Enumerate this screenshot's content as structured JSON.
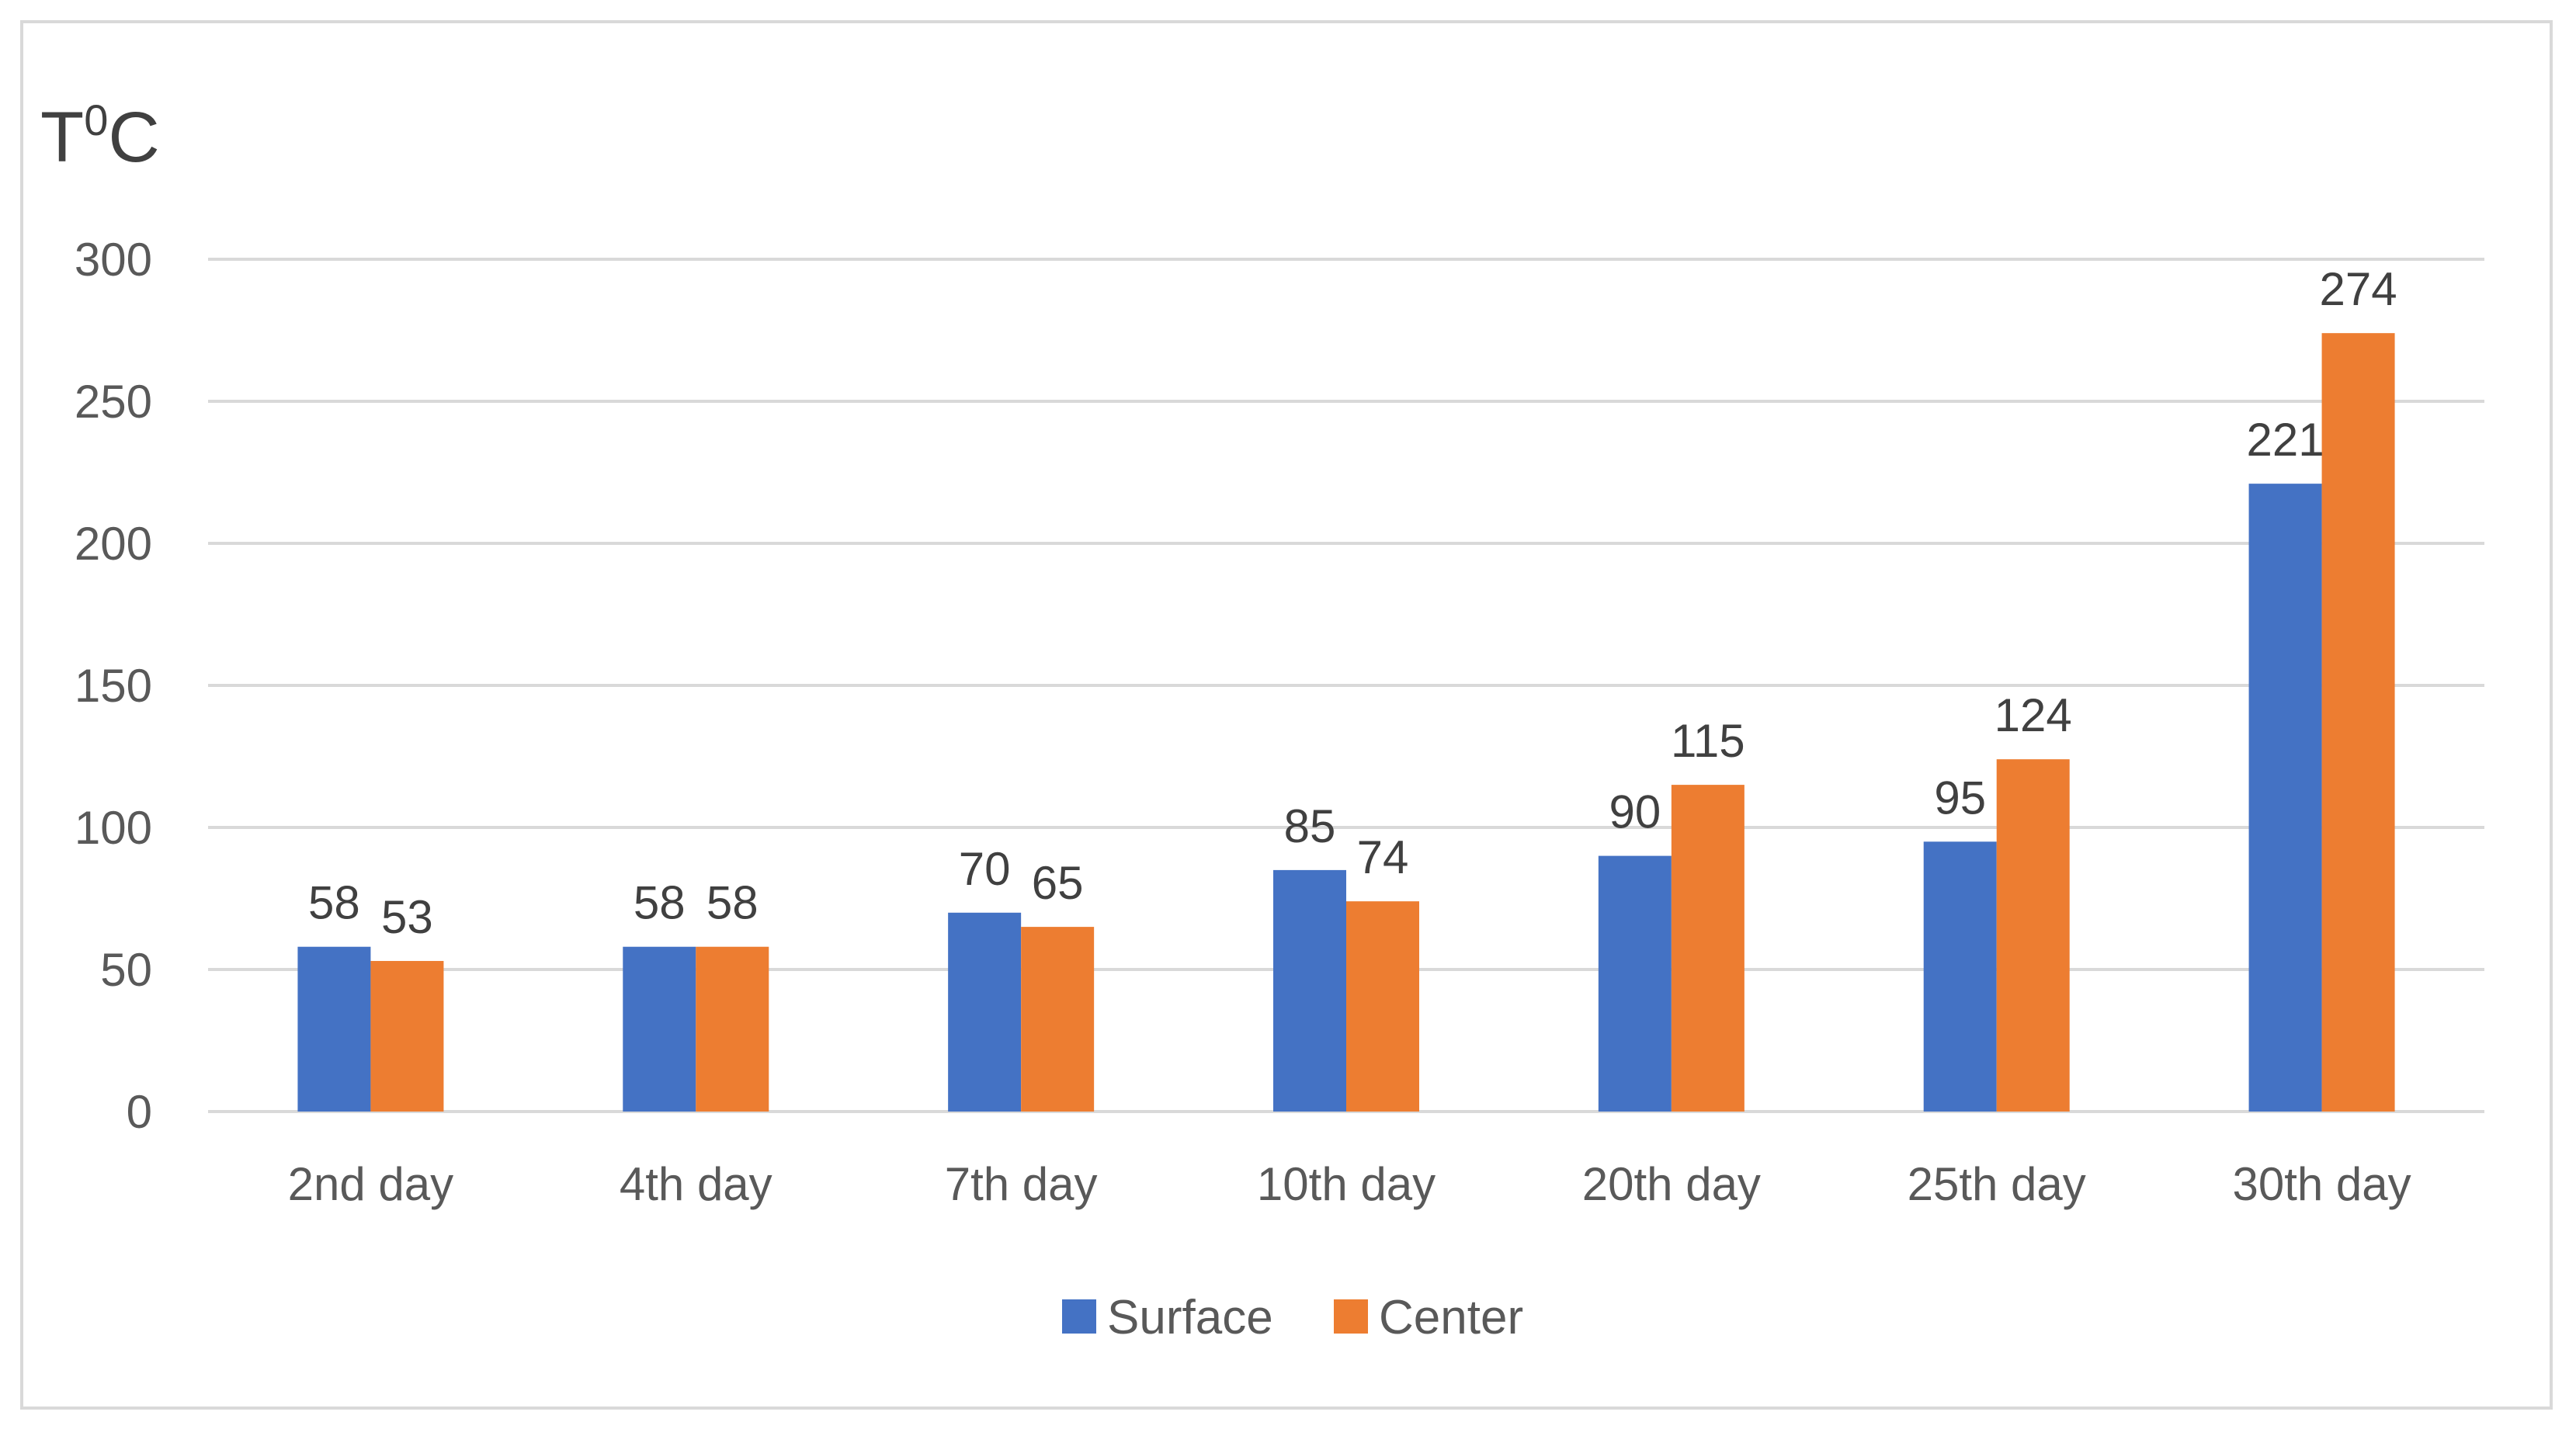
{
  "chart_data": {
    "type": "bar",
    "title": "",
    "xlabel": "",
    "ylabel": "T",
    "ylabel_sup": "0",
    "ylabel_suffix": "C",
    "categories": [
      "2nd day",
      "4th day",
      "7th day",
      "10th day",
      "20th day",
      "25th day",
      "30th day"
    ],
    "series": [
      {
        "name": "Surface",
        "color": "#4472c4",
        "values": [
          58,
          58,
          70,
          85,
          90,
          95,
          221
        ]
      },
      {
        "name": "Center",
        "color": "#ed7d31",
        "values": [
          53,
          58,
          65,
          74,
          115,
          124,
          274
        ]
      }
    ],
    "ylim": [
      0,
      300
    ],
    "yticks": [
      0,
      50,
      100,
      150,
      200,
      250,
      300
    ],
    "grid": true,
    "legend_position": "bottom"
  }
}
